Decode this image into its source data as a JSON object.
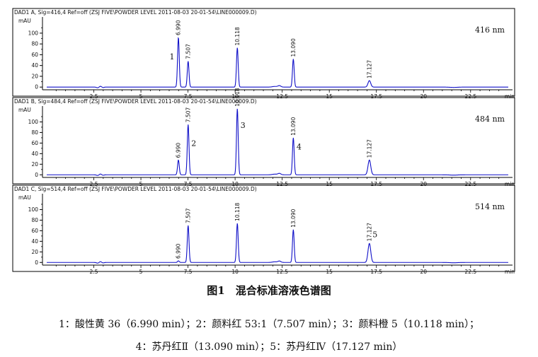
{
  "figure": {
    "caption": "图1　混合标准溶液色谱图",
    "legend_line_1": "1：酸性黄 36（6.990 min）；2：颜料红 53:1（7.507 min）；3：颜料橙 5（10.118 min）；",
    "legend_line_2": "4：苏丹红Ⅱ（13.090 min）；5：苏丹红Ⅳ（17.127 min）"
  },
  "colors": {
    "trace": "#1010c8",
    "axis": "#000000",
    "frame": "#000000"
  },
  "chart_data": [
    {
      "type": "line",
      "header": "DAD1 A, Sig=416,4 Ref=off (ZSJ FIVE\\POWDER LEVEL 2011-08-03 20-01-54\\LINE000009.D)",
      "wavelength": "416 nm",
      "ylabel": "mAU",
      "xlabel": "min",
      "xlim": [
        0,
        24.5
      ],
      "ylim": [
        -5,
        130
      ],
      "x_ticks": [
        "2.5",
        "5",
        "7.5",
        "10",
        "12.5",
        "15",
        "17.5",
        "20",
        "22.5"
      ],
      "y_ticks": [
        "0",
        "20",
        "40",
        "60",
        "80",
        "100"
      ],
      "peaks": [
        {
          "rt": "6.990",
          "height": 92,
          "id": "1"
        },
        {
          "rt": "7.507",
          "height": 48,
          "id": ""
        },
        {
          "rt": "10.118",
          "height": 73,
          "id": ""
        },
        {
          "rt": "13.090",
          "height": 52,
          "id": ""
        },
        {
          "rt": "17.127",
          "height": 12,
          "id": ""
        }
      ]
    },
    {
      "type": "line",
      "header": "DAD1 B, Sig=484,4 Ref=off (ZSJ FIVE\\POWDER LEVEL 2011-08-03 20-01-54\\LINE000009.D)",
      "wavelength": "484 nm",
      "ylabel": "mAU",
      "xlabel": "min",
      "xlim": [
        0,
        24.5
      ],
      "ylim": [
        -5,
        130
      ],
      "x_ticks": [
        "2.5",
        "5",
        "7.5",
        "10",
        "12.5",
        "15",
        "17.5",
        "20",
        "22.5"
      ],
      "y_ticks": [
        "0",
        "20",
        "40",
        "60",
        "80",
        "100"
      ],
      "peaks": [
        {
          "rt": "6.990",
          "height": 28,
          "id": ""
        },
        {
          "rt": "7.507",
          "height": 95,
          "id": "2"
        },
        {
          "rt": "10.118",
          "height": 125,
          "id": "3"
        },
        {
          "rt": "13.090",
          "height": 70,
          "id": "4"
        },
        {
          "rt": "17.127",
          "height": 28,
          "id": ""
        }
      ]
    },
    {
      "type": "line",
      "header": "DAD1 C, Sig=514,4 Ref=off (ZSJ FIVE\\POWDER LEVEL 2011-08-03 20-01-54\\LINE000009.D)",
      "wavelength": "514 nm",
      "ylabel": "mAU",
      "xlabel": "min",
      "xlim": [
        0,
        24.5
      ],
      "ylim": [
        -5,
        130
      ],
      "x_ticks": [
        "2.5",
        "5",
        "7.5",
        "10",
        "12.5",
        "15",
        "17.5",
        "20",
        "22.5"
      ],
      "y_ticks": [
        "0",
        "20",
        "40",
        "60",
        "80",
        "100"
      ],
      "peaks": [
        {
          "rt": "6.990",
          "height": 3,
          "id": ""
        },
        {
          "rt": "7.507",
          "height": 70,
          "id": ""
        },
        {
          "rt": "10.118",
          "height": 74,
          "id": ""
        },
        {
          "rt": "13.090",
          "height": 62,
          "id": ""
        },
        {
          "rt": "17.127",
          "height": 36,
          "id": "5"
        }
      ]
    }
  ]
}
